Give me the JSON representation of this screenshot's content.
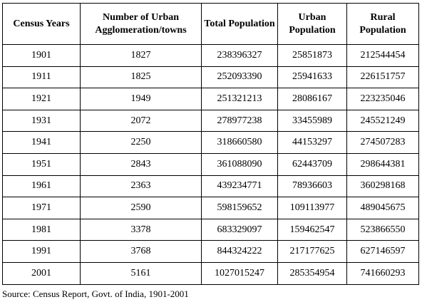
{
  "table": {
    "headers": [
      "Census Years",
      "Number of Urban Agglomeration/towns",
      "Total Population",
      "Urban Population",
      "Rural Population"
    ],
    "rows": [
      [
        "1901",
        "1827",
        "238396327",
        "25851873",
        "212544454"
      ],
      [
        "1911",
        "1825",
        "252093390",
        "25941633",
        "226151757"
      ],
      [
        "1921",
        "1949",
        "251321213",
        "28086167",
        "223235046"
      ],
      [
        "1931",
        "2072",
        "278977238",
        "33455989",
        "245521249"
      ],
      [
        "1941",
        "2250",
        "318660580",
        "44153297",
        "274507283"
      ],
      [
        "1951",
        "2843",
        "361088090",
        "62443709",
        "298644381"
      ],
      [
        "1961",
        "2363",
        "439234771",
        "78936603",
        "360298168"
      ],
      [
        "1971",
        "2590",
        "598159652",
        "109113977",
        "489045675"
      ],
      [
        "1981",
        "3378",
        "683329097",
        "159462547",
        "523866550"
      ],
      [
        "1991",
        "3768",
        "844324222",
        "217177625",
        "627146597"
      ],
      [
        "2001",
        "5161",
        "1027015247",
        "285354954",
        "741660293"
      ]
    ]
  },
  "source": "Source: Census Report, Govt. of India, 1901-2001"
}
